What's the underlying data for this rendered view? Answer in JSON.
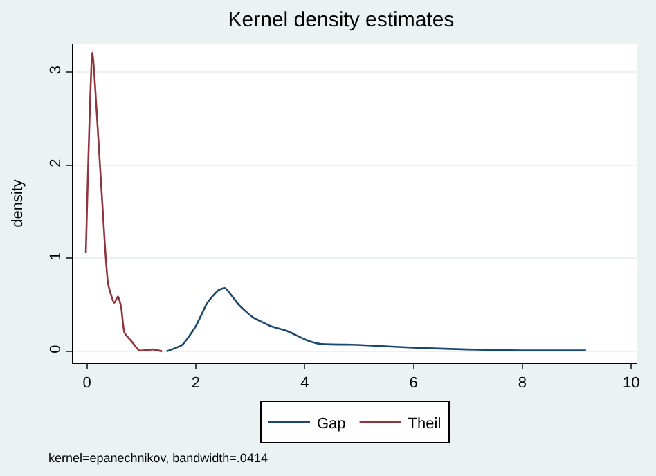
{
  "chart_data": {
    "type": "line",
    "title": "Kernel density estimates",
    "ylabel": "density",
    "xlim": [
      -0.25,
      10.1
    ],
    "ylim": [
      -0.12,
      3.3
    ],
    "xticks": [
      0,
      2,
      4,
      6,
      8,
      10
    ],
    "yticks": [
      0,
      1,
      2,
      3
    ],
    "grid": "y",
    "legend": "bottom",
    "annotations": [
      "kernel=epanechnikov, bandwidth=.0414"
    ],
    "series": [
      {
        "name": "Gap",
        "color": "#1a476f",
        "x": [
          1.46,
          1.75,
          2.0,
          2.21,
          2.42,
          2.54,
          2.79,
          3.04,
          3.38,
          3.67,
          4.04,
          4.29,
          4.97,
          5.98,
          6.98,
          7.99,
          9.17
        ],
        "values": [
          0,
          0.07,
          0.27,
          0.52,
          0.66,
          0.68,
          0.5,
          0.37,
          0.27,
          0.22,
          0.12,
          0.08,
          0.07,
          0.04,
          0.02,
          0.01,
          0.01
        ]
      },
      {
        "name": "Theil",
        "color": "#90353b",
        "x": [
          -0.02,
          0.1,
          0.21,
          0.33,
          0.39,
          0.5,
          0.57,
          0.63,
          0.69,
          0.83,
          0.96,
          1.21,
          1.38
        ],
        "values": [
          1.06,
          3.21,
          2.28,
          1.14,
          0.72,
          0.52,
          0.59,
          0.47,
          0.2,
          0.1,
          0.01,
          0.02,
          0
        ]
      }
    ]
  }
}
